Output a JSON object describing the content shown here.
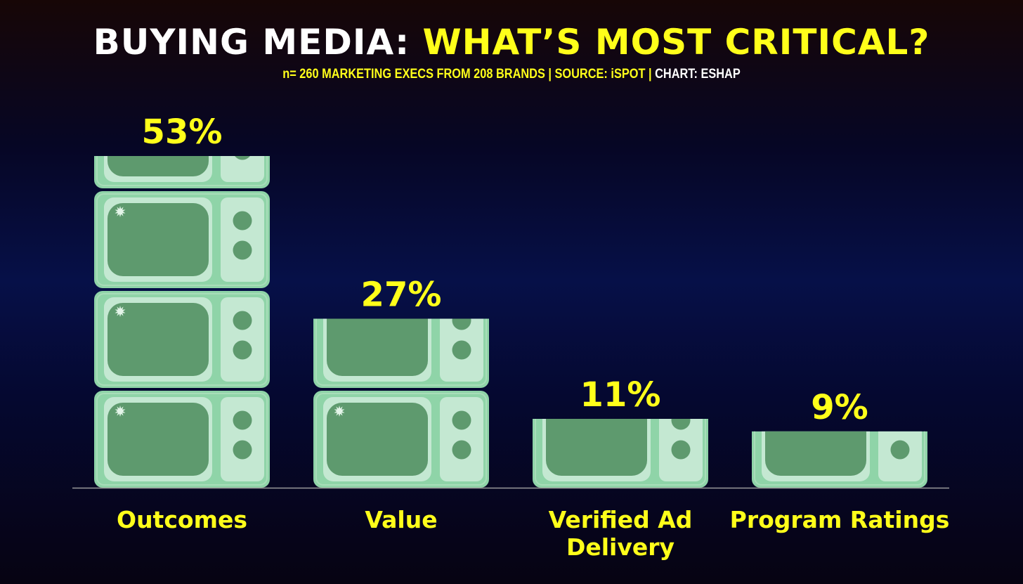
{
  "header": {
    "title_white": "BUYING MEDIA:",
    "title_yellow": "WHAT’S MOST CRITICAL?",
    "subtitle_main": "n= 260 MARKETING EXECS FROM 208 BRANDS | SOURCE: iSPOT |",
    "subtitle_credit": "CHART: ESHAP"
  },
  "colors": {
    "accent": "#ffff1a",
    "tv_body": "#8fd4a8",
    "tv_panel": "#c4e8d2",
    "tv_screen": "#5e9a6e",
    "baseline": "#9a9a9a"
  },
  "chart_data": {
    "type": "bar",
    "title": "BUYING MEDIA: WHAT’S MOST CRITICAL?",
    "categories": [
      "Outcomes",
      "Value",
      "Verified Ad Delivery",
      "Program Ratings"
    ],
    "values": [
      53,
      27,
      11,
      9
    ],
    "value_labels": [
      "53%",
      "27%",
      "11%",
      "9%"
    ],
    "unit": "%",
    "ylim": [
      0,
      55
    ],
    "xlabel": "",
    "ylabel": "",
    "grid": false,
    "legend": "none",
    "mark_style": "stacked television icons"
  }
}
